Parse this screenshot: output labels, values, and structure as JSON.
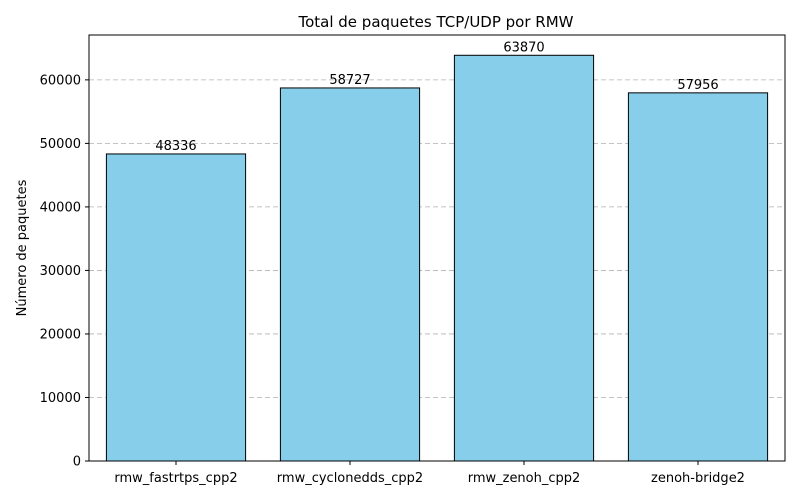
{
  "chart_data": {
    "type": "bar",
    "title": "Total de paquetes TCP/UDP por RMW",
    "xlabel": "",
    "ylabel": "Número de paquetes",
    "categories": [
      "rmw_fastrtps_cpp2",
      "rmw_cyclonedds_cpp2",
      "rmw_zenoh_cpp2",
      "zenoh-bridge2"
    ],
    "values": [
      48336,
      58727,
      63870,
      57956
    ],
    "data_labels": [
      "48336",
      "58727",
      "63870",
      "57956"
    ],
    "ylim": [
      0,
      67063
    ],
    "yticks": [
      0,
      10000,
      20000,
      30000,
      40000,
      50000,
      60000
    ],
    "ytick_labels": [
      "0",
      "10000",
      "20000",
      "30000",
      "40000",
      "50000",
      "60000"
    ],
    "grid": "y-dashed",
    "bar_color": "#87ceeb",
    "bar_edge_color": "#000000"
  }
}
